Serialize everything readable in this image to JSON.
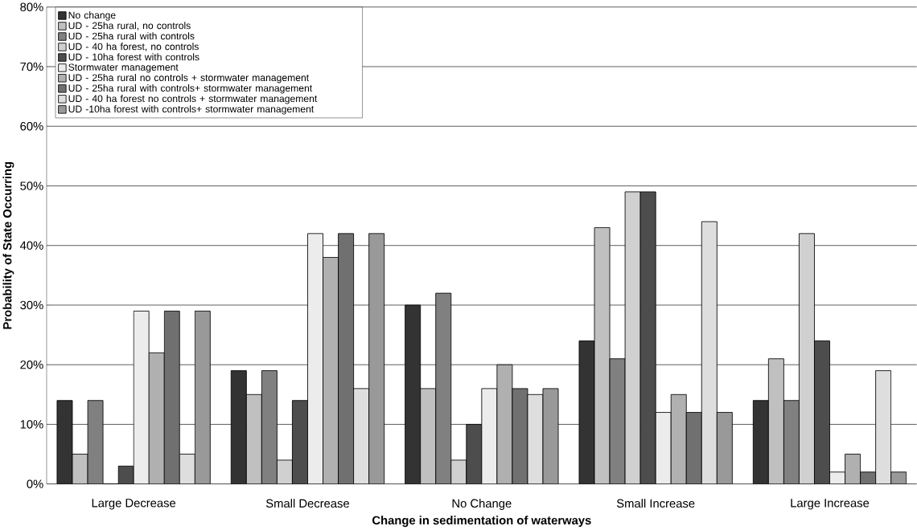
{
  "chart_data": {
    "type": "bar",
    "xlabel": "Change in sedimentation of waterways",
    "ylabel": "Probability of State Occurring",
    "categories": [
      "Large Decrease",
      "Small Decrease",
      "No Change",
      "Small Increase",
      "Large Increase"
    ],
    "series": [
      {
        "name": "No change",
        "color": "#333333",
        "values": [
          14,
          19,
          30,
          24,
          14
        ]
      },
      {
        "name": "UD - 25ha rural, no controls",
        "color": "#c0c0c0",
        "values": [
          5,
          15,
          16,
          43,
          21
        ]
      },
      {
        "name": "UD - 25ha rural with controls",
        "color": "#808080",
        "values": [
          14,
          19,
          32,
          21,
          14
        ]
      },
      {
        "name": "UD - 40 ha forest, no controls",
        "color": "#d0d0d0",
        "values": [
          0,
          4,
          4,
          49,
          42
        ]
      },
      {
        "name": "UD - 10ha forest with controls",
        "color": "#4d4d4d",
        "values": [
          3,
          14,
          10,
          49,
          24
        ]
      },
      {
        "name": "Stormwater management",
        "color": "#ececec",
        "values": [
          29,
          42,
          16,
          12,
          2
        ]
      },
      {
        "name": "UD - 25ha rural no controls + stormwater management",
        "color": "#b0b0b0",
        "values": [
          22,
          38,
          20,
          15,
          5
        ]
      },
      {
        "name": "UD - 25ha rural with controls+ stormwater management",
        "color": "#707070",
        "values": [
          29,
          42,
          16,
          12,
          2
        ]
      },
      {
        "name": "UD - 40 ha forest no controls + stormwater management",
        "color": "#dedede",
        "values": [
          5,
          16,
          15,
          44,
          19
        ]
      },
      {
        "name": "UD -10ha forest with controls+ stormwater management",
        "color": "#999999",
        "values": [
          29,
          42,
          16,
          12,
          2
        ]
      }
    ],
    "ylim": [
      0,
      80
    ],
    "yticks": [
      {
        "value": 0,
        "label": "0%"
      },
      {
        "value": 10,
        "label": "10%"
      },
      {
        "value": 20,
        "label": "20%"
      },
      {
        "value": 30,
        "label": "30%"
      },
      {
        "value": 40,
        "label": "40%"
      },
      {
        "value": 50,
        "label": "50%"
      },
      {
        "value": 60,
        "label": "60%"
      },
      {
        "value": 70,
        "label": "70%"
      },
      {
        "value": 80,
        "label": "80%"
      }
    ],
    "grid": "y",
    "legend": "top left"
  }
}
